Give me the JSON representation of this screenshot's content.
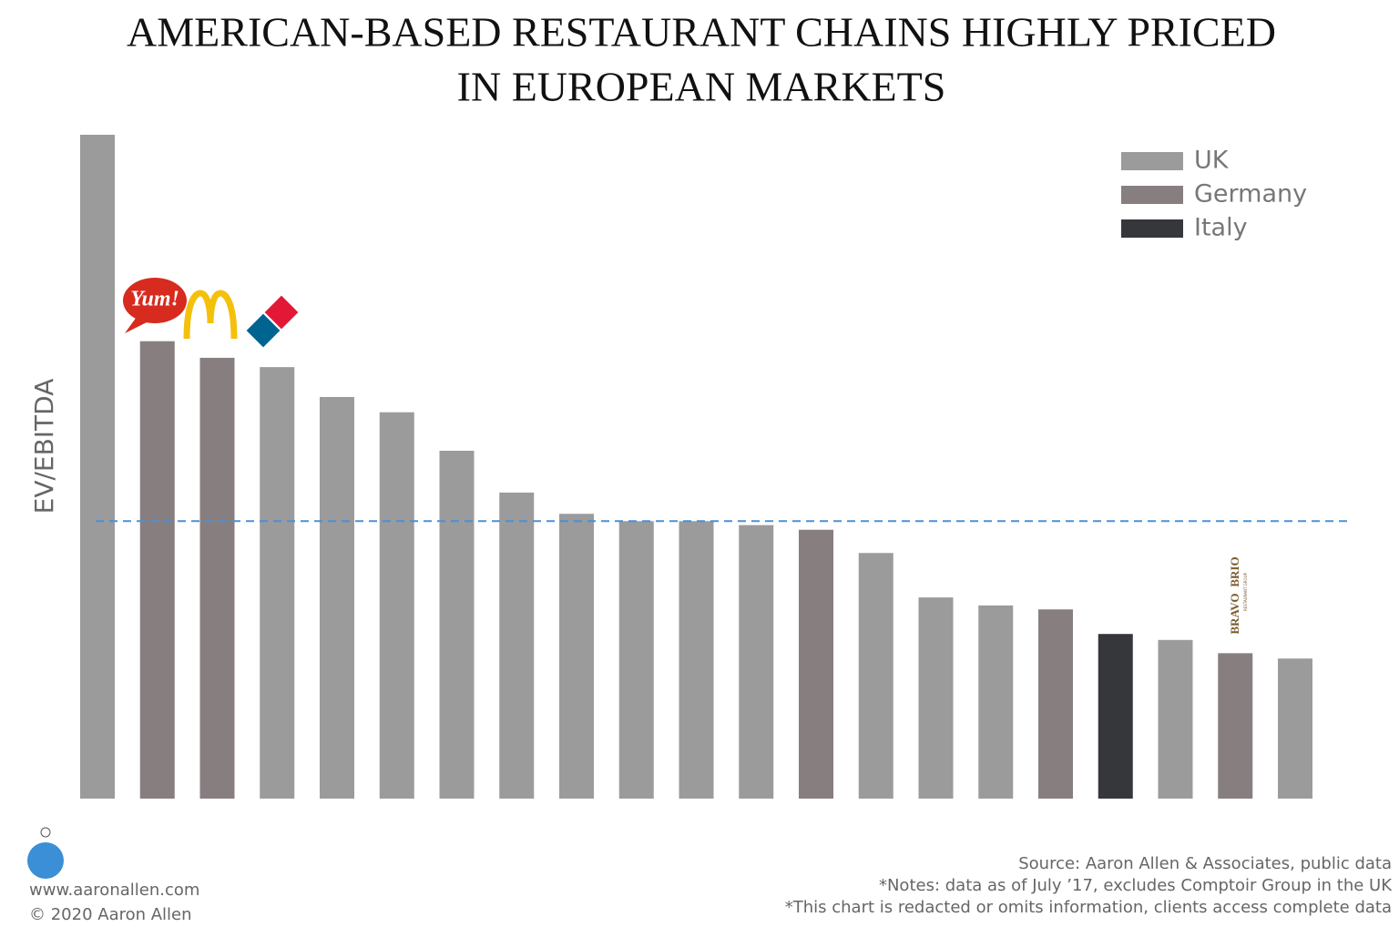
{
  "chart_data": {
    "type": "bar",
    "title": "AMERICAN-BASED RESTAURANT CHAINS HIGHLY PRICED IN EUROPEAN MARKETS",
    "y_label": "EV/EBITDA",
    "series": [
      {
        "name": "UK",
        "color": "#9b9b9b",
        "values": [
          100,
          null,
          null,
          65.0,
          60.5,
          58.2,
          52.4,
          46.1,
          42.9,
          41.8,
          41.8,
          41.2,
          null,
          37.0,
          30.3,
          29.1,
          null,
          null,
          23.9,
          null,
          21.1
        ]
      },
      {
        "name": "Germany",
        "color": "#877e7f",
        "values": [
          null,
          68.9,
          66.4,
          null,
          null,
          null,
          null,
          null,
          null,
          null,
          null,
          null,
          40.5,
          null,
          null,
          null,
          28.5,
          null,
          null,
          21.9,
          null
        ]
      },
      {
        "name": "Italy",
        "color": "#35373a",
        "values": [
          null,
          null,
          null,
          null,
          null,
          null,
          null,
          null,
          null,
          null,
          null,
          null,
          null,
          null,
          null,
          null,
          null,
          24.8,
          null,
          null,
          null
        ]
      }
    ],
    "reference_line": 41.8,
    "logos": [
      "Yum!",
      "BRAVO",
      "BRIO",
      "RESTAURANT GROUP"
    ],
    "footer": {
      "site": "www.aaronallen.com",
      "copyright": "© 2020 Aaron Allen",
      "source": "Source: Aaron Allen & Associates, public data",
      "notes": "*Notes: data as of July ’17, excludes Comptoir Group in the UK",
      "disclaimer": "*This chart is redacted or omits information, clients access complete data"
    }
  }
}
